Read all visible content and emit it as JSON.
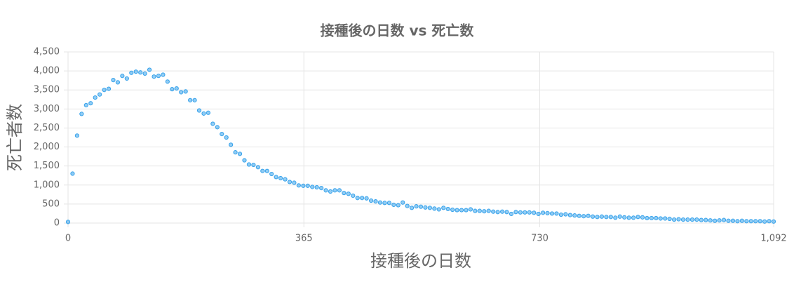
{
  "chart_data": {
    "type": "scatter",
    "title": "接種後の日数 vs 死亡数",
    "x_label": "接種後の日数",
    "y_label": "死亡者数",
    "x": [
      0,
      7,
      14,
      21,
      28,
      35,
      42,
      49,
      56,
      63,
      70,
      77,
      84,
      91,
      98,
      105,
      112,
      119,
      126,
      133,
      140,
      147,
      154,
      161,
      168,
      175,
      182,
      189,
      196,
      203,
      210,
      217,
      224,
      231,
      238,
      245,
      252,
      259,
      266,
      273,
      280,
      287,
      294,
      301,
      308,
      315,
      322,
      329,
      336,
      343,
      350,
      357,
      364,
      371,
      378,
      385,
      392,
      399,
      406,
      413,
      420,
      427,
      434,
      441,
      448,
      455,
      462,
      469,
      476,
      483,
      490,
      497,
      504,
      511,
      518,
      525,
      532,
      539,
      546,
      553,
      560,
      567,
      574,
      581,
      588,
      595,
      602,
      609,
      616,
      623,
      630,
      637,
      644,
      651,
      658,
      665,
      672,
      679,
      686,
      693,
      700,
      707,
      714,
      721,
      728,
      735,
      742,
      749,
      756,
      763,
      770,
      777,
      784,
      791,
      798,
      805,
      812,
      819,
      826,
      833,
      840,
      847,
      854,
      861,
      868,
      875,
      882,
      889,
      896,
      903,
      910,
      917,
      924,
      931,
      938,
      945,
      952,
      959,
      966,
      973,
      980,
      987,
      994,
      1001,
      1008,
      1015,
      1022,
      1029,
      1036,
      1043,
      1050,
      1057,
      1064,
      1071,
      1078,
      1085,
      1092
    ],
    "values": [
      30,
      1300,
      2300,
      2870,
      3100,
      3150,
      3300,
      3380,
      3500,
      3530,
      3760,
      3700,
      3870,
      3800,
      3950,
      3980,
      3960,
      3930,
      4030,
      3850,
      3870,
      3900,
      3720,
      3520,
      3540,
      3440,
      3460,
      3230,
      3230,
      2960,
      2880,
      2900,
      2610,
      2520,
      2340,
      2250,
      2060,
      1860,
      1820,
      1650,
      1540,
      1530,
      1470,
      1370,
      1370,
      1290,
      1210,
      1180,
      1150,
      1080,
      1060,
      990,
      980,
      980,
      950,
      940,
      920,
      860,
      830,
      860,
      860,
      790,
      770,
      720,
      660,
      660,
      650,
      590,
      570,
      540,
      530,
      530,
      480,
      470,
      540,
      450,
      400,
      440,
      430,
      410,
      400,
      380,
      360,
      400,
      370,
      350,
      340,
      340,
      340,
      360,
      320,
      320,
      310,
      320,
      300,
      290,
      300,
      290,
      240,
      290,
      280,
      280,
      280,
      270,
      240,
      270,
      260,
      250,
      250,
      220,
      230,
      210,
      200,
      190,
      180,
      190,
      170,
      160,
      170,
      160,
      160,
      140,
      170,
      150,
      140,
      140,
      160,
      150,
      130,
      130,
      130,
      120,
      120,
      110,
      90,
      100,
      90,
      90,
      90,
      90,
      80,
      80,
      70,
      60,
      70,
      80,
      60,
      60,
      50,
      60,
      50,
      50,
      50,
      50,
      40,
      50,
      40
    ],
    "color": "#36a2eb",
    "xlim": [
      0,
      1092
    ],
    "xticks": [
      0,
      365,
      730,
      {
        "value": 1092,
        "label": "1,092"
      }
    ],
    "ylim": [
      0,
      4500
    ],
    "yticks": [
      0,
      500,
      {
        "value": 1000,
        "label": "1,000"
      },
      {
        "value": 1500,
        "label": "1,500"
      },
      {
        "value": 2000,
        "label": "2,000"
      },
      {
        "value": 2500,
        "label": "2,500"
      },
      {
        "value": 3000,
        "label": "3,000"
      },
      {
        "value": 3500,
        "label": "3,500"
      },
      {
        "value": 4000,
        "label": "4,000"
      },
      {
        "value": 4500,
        "label": "4,500"
      }
    ],
    "grid": true
  }
}
